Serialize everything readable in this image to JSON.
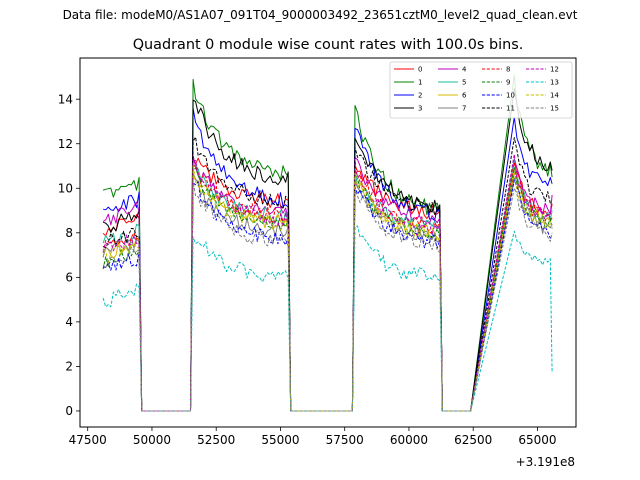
{
  "suptitle": "Data file: modeM0/AS1A07_091T04_9000003492_23651cztM0_level2_quad_clean.evt",
  "chart_data": {
    "type": "line",
    "title": "Quadrant 0 module wise count rates with 100.0s bins.",
    "xlabel": "",
    "ylabel": "",
    "x_offset_label": "+3.191e8",
    "xlim": [
      47200,
      66500
    ],
    "ylim": [
      -0.72,
      15.85
    ],
    "xticks": [
      47500,
      50000,
      52500,
      55000,
      57500,
      60000,
      62500,
      65000
    ],
    "xtick_labels": [
      "47500",
      "50000",
      "52500",
      "55000",
      "57500",
      "60000",
      "62500",
      "65000"
    ],
    "yticks": [
      0,
      2,
      4,
      6,
      8,
      10,
      12,
      14
    ],
    "ytick_labels": [
      "0",
      "2",
      "4",
      "6",
      "8",
      "10",
      "12",
      "14"
    ],
    "grid": false,
    "legend_position": "top-right",
    "segments": [
      {
        "start": 48100,
        "end": 49500,
        "gap_end": 51500
      },
      {
        "start": 51600,
        "end": 55300,
        "gap_end": 57800
      },
      {
        "start": 57900,
        "end": 61200,
        "gap_end": 62400
      },
      {
        "start": 64100,
        "end": 65550,
        "gap_end": null
      }
    ],
    "series": [
      {
        "name": "0",
        "color": "#ff0000",
        "dash": "solid",
        "levels": [
          8.4,
          11.6,
          11.3,
          10.9
        ],
        "decay": [
          0.9,
          0.8,
          0.78,
          0.82
        ],
        "final": 9.3
      },
      {
        "name": "1",
        "color": "#008000",
        "dash": "solid",
        "levels": [
          10.0,
          14.6,
          13.6,
          14.8
        ],
        "decay": [
          1.0,
          0.72,
          0.65,
          0.72
        ],
        "final": 10.5
      },
      {
        "name": "2",
        "color": "#0000ff",
        "dash": "solid",
        "levels": [
          9.2,
          13.3,
          12.9,
          12.9
        ],
        "decay": [
          0.98,
          0.7,
          0.67,
          0.78
        ],
        "final": 10.2
      },
      {
        "name": "3",
        "color": "#000000",
        "dash": "solid",
        "levels": [
          8.5,
          14.2,
          12.5,
          14.5
        ],
        "decay": [
          1.0,
          0.72,
          0.72,
          0.75
        ],
        "final": 10.8
      },
      {
        "name": "4",
        "color": "#bf00bf",
        "dash": "solid",
        "levels": [
          8.8,
          11.2,
          11.2,
          11.1
        ],
        "decay": [
          1.0,
          0.78,
          0.76,
          0.8
        ],
        "final": 9.7
      },
      {
        "name": "5",
        "color": "#1abc9c",
        "dash": "solid",
        "levels": [
          7.8,
          10.9,
          10.6,
          11.0
        ],
        "decay": [
          1.0,
          0.79,
          0.77,
          0.78
        ],
        "final": 9.0
      },
      {
        "name": "6",
        "color": "#d4b800",
        "dash": "solid",
        "levels": [
          7.3,
          10.6,
          10.4,
          10.6
        ],
        "decay": [
          1.0,
          0.79,
          0.76,
          0.8
        ],
        "final": 8.7
      },
      {
        "name": "7",
        "color": "#808080",
        "dash": "solid",
        "levels": [
          7.4,
          10.3,
          10.2,
          10.4
        ],
        "decay": [
          1.0,
          0.78,
          0.76,
          0.78
        ],
        "final": 8.4
      },
      {
        "name": "8",
        "color": "#ff0000",
        "dash": "dashed",
        "levels": [
          7.6,
          11.1,
          11.0,
          11.0
        ],
        "decay": [
          1.0,
          0.78,
          0.74,
          0.78
        ],
        "final": 8.6
      },
      {
        "name": "9",
        "color": "#008000",
        "dash": "dashed",
        "levels": [
          7.0,
          10.8,
          10.7,
          10.7
        ],
        "decay": [
          1.0,
          0.77,
          0.73,
          0.78
        ],
        "final": 8.2
      },
      {
        "name": "10",
        "color": "#0000ff",
        "dash": "dashed",
        "levels": [
          6.6,
          10.4,
          10.3,
          10.5
        ],
        "decay": [
          1.0,
          0.73,
          0.72,
          0.76
        ],
        "final": 7.8
      },
      {
        "name": "11",
        "color": "#000000",
        "dash": "dashed",
        "levels": [
          7.8,
          12.2,
          12.0,
          12.0
        ],
        "decay": [
          1.0,
          0.76,
          0.74,
          0.78
        ],
        "final": 9.3
      },
      {
        "name": "12",
        "color": "#bf00bf",
        "dash": "dashed",
        "levels": [
          7.5,
          11.4,
          11.0,
          11.2
        ],
        "decay": [
          1.0,
          0.74,
          0.72,
          0.76
        ],
        "final": 8.6
      },
      {
        "name": "13",
        "color": "#00bfbf",
        "dash": "dashed",
        "levels": [
          5.2,
          8.0,
          8.2,
          8.1
        ],
        "decay": [
          1.08,
          0.74,
          0.72,
          0.8
        ],
        "final": 1.7
      },
      {
        "name": "14",
        "color": "#bfbf00",
        "dash": "dashed",
        "levels": [
          7.2,
          10.7,
          10.6,
          10.6
        ],
        "decay": [
          1.0,
          0.77,
          0.74,
          0.78
        ],
        "final": 8.3
      },
      {
        "name": "15",
        "color": "#808080",
        "dash": "dashed",
        "levels": [
          6.9,
          10.0,
          10.1,
          10.2
        ],
        "decay": [
          1.0,
          0.75,
          0.72,
          0.76
        ],
        "final": 8.0
      }
    ]
  }
}
